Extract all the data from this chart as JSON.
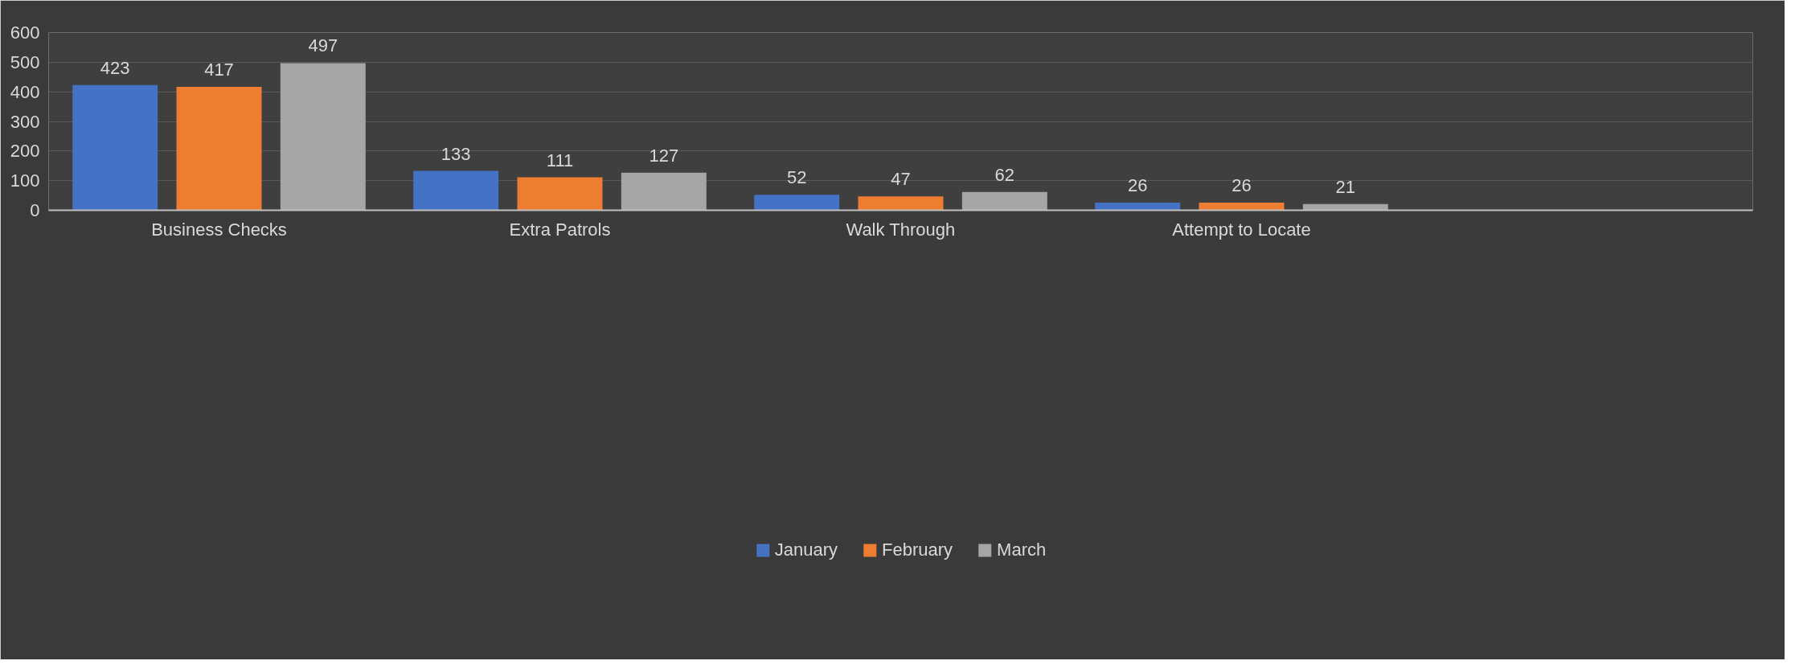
{
  "chart_data": {
    "type": "bar",
    "categories": [
      "Business Checks",
      "Extra Patrols",
      "Walk Through",
      "Attempt to Locate",
      null
    ],
    "series": [
      {
        "name": "January",
        "color": "#4472c4",
        "values": [
          423,
          133,
          52,
          26,
          null
        ]
      },
      {
        "name": "February",
        "color": "#ed7d31",
        "values": [
          417,
          111,
          47,
          26,
          null
        ]
      },
      {
        "name": "March",
        "color": "#a5a5a5",
        "values": [
          497,
          127,
          62,
          21,
          null
        ]
      }
    ],
    "ylim": [
      0,
      600
    ],
    "yticks": [
      0,
      100,
      200,
      300,
      400,
      500,
      600
    ],
    "grid": "y",
    "legend": "bottom",
    "data_labels": true
  }
}
